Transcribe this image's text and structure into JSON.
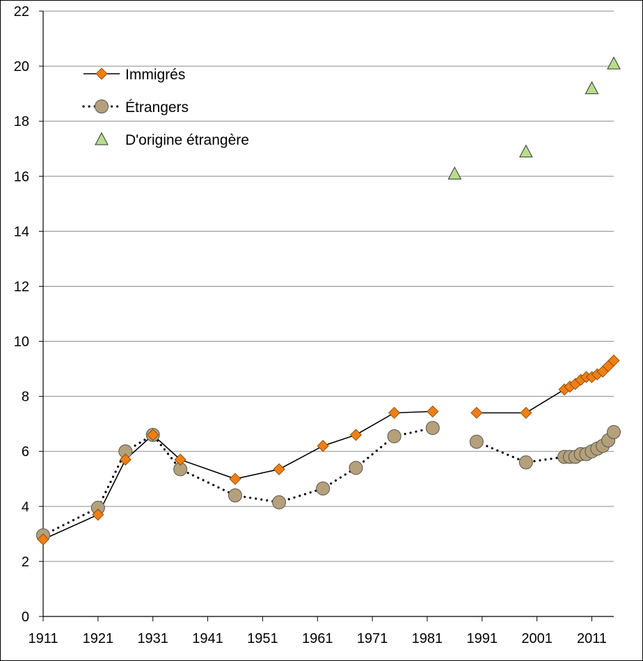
{
  "chart_data": {
    "type": "line",
    "title": "",
    "xlabel": "",
    "ylabel": "",
    "xlim": [
      1911,
      2015
    ],
    "ylim": [
      0,
      22
    ],
    "x_ticks": [
      "1911",
      "1921",
      "1931",
      "1941",
      "1951",
      "1961",
      "1971",
      "1981",
      "1991",
      "2001",
      "2011"
    ],
    "y_ticks": [
      "0",
      "2",
      "4",
      "6",
      "8",
      "10",
      "12",
      "14",
      "16",
      "18",
      "20",
      "22"
    ],
    "grid": "horizontal",
    "legend_position": "top-left",
    "series": [
      {
        "name": "Immigrés",
        "line": "solid",
        "marker": "diamond",
        "color": "#f07f12",
        "segments": [
          [
            [
              1911,
              2.8
            ],
            [
              1921,
              3.7
            ],
            [
              1926,
              5.7
            ],
            [
              1931,
              6.6
            ],
            [
              1936,
              5.7
            ],
            [
              1946,
              5.0
            ],
            [
              1954,
              5.35
            ],
            [
              1962,
              6.2
            ],
            [
              1968,
              6.6
            ],
            [
              1975,
              7.4
            ],
            [
              1982,
              7.45
            ]
          ],
          [
            [
              1990,
              7.4
            ],
            [
              1999,
              7.4
            ],
            [
              2006,
              8.25
            ],
            [
              2007,
              8.35
            ],
            [
              2008,
              8.45
            ],
            [
              2009,
              8.6
            ],
            [
              2010,
              8.7
            ],
            [
              2011,
              8.7
            ],
            [
              2012,
              8.8
            ],
            [
              2013,
              8.9
            ],
            [
              2014,
              9.1
            ],
            [
              2015,
              9.3
            ]
          ]
        ]
      },
      {
        "name": "Étrangers",
        "line": "dotted",
        "marker": "circle",
        "color": "#b4a07a",
        "segments": [
          [
            [
              1911,
              2.95
            ],
            [
              1921,
              3.95
            ],
            [
              1926,
              6.0
            ],
            [
              1931,
              6.6
            ],
            [
              1936,
              5.35
            ],
            [
              1946,
              4.4
            ],
            [
              1954,
              4.15
            ],
            [
              1962,
              4.65
            ],
            [
              1968,
              5.4
            ],
            [
              1975,
              6.55
            ],
            [
              1982,
              6.85
            ]
          ],
          [
            [
              1990,
              6.35
            ],
            [
              1999,
              5.6
            ],
            [
              2006,
              5.8
            ],
            [
              2007,
              5.8
            ],
            [
              2008,
              5.8
            ],
            [
              2009,
              5.9
            ],
            [
              2010,
              5.9
            ],
            [
              2011,
              6.0
            ],
            [
              2012,
              6.1
            ],
            [
              2013,
              6.2
            ],
            [
              2014,
              6.4
            ],
            [
              2015,
              6.7
            ]
          ]
        ]
      },
      {
        "name": "D'origine étrangère",
        "line": "none",
        "marker": "triangle",
        "color": "#b7de8c",
        "segments": [
          [
            [
              1986,
              16.1
            ],
            [
              1999,
              16.9
            ],
            [
              2011,
              19.2
            ],
            [
              2015,
              20.1
            ]
          ]
        ]
      }
    ]
  }
}
